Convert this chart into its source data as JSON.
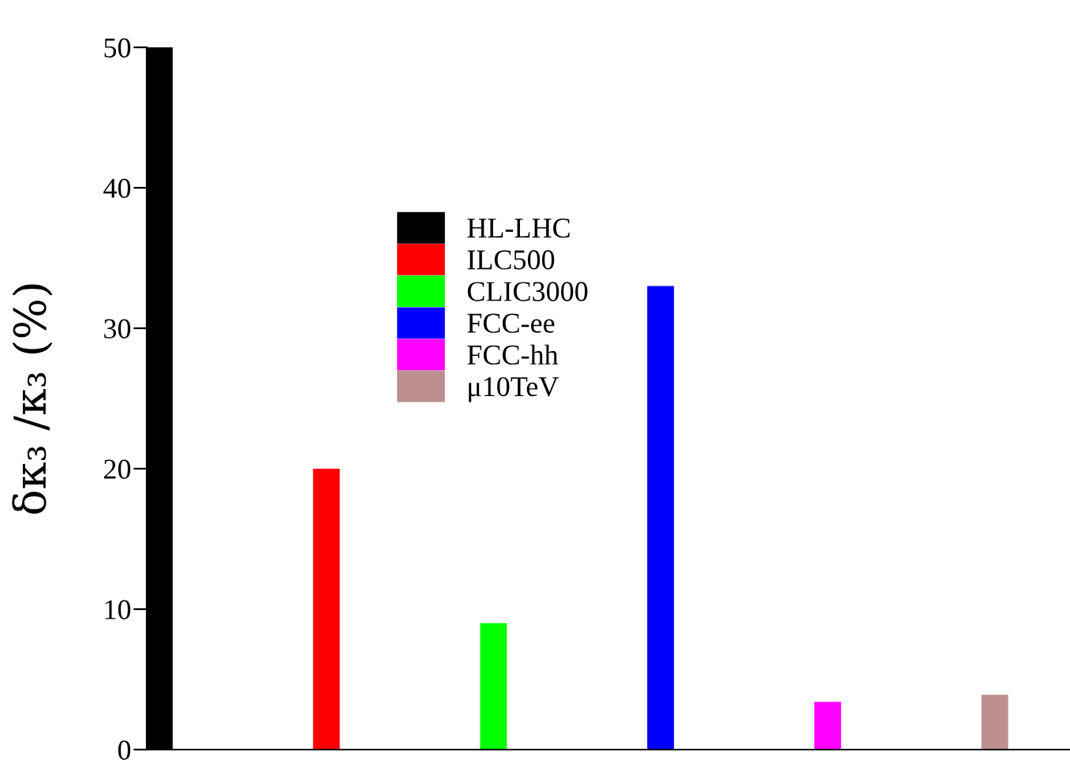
{
  "chart_data": {
    "type": "bar",
    "ylabel": "δκ₃ /κ₃ (%)",
    "categories": [
      null,
      null,
      null,
      null,
      null,
      null
    ],
    "series": [
      {
        "name": "HL-LHC",
        "color": "#000000",
        "values": [
          50,
          null,
          null,
          null,
          null,
          null
        ]
      },
      {
        "name": "ILC500",
        "color": "#ff0000",
        "values": [
          null,
          20,
          null,
          null,
          null,
          null
        ]
      },
      {
        "name": "CLIC3000",
        "color": "#00ff00",
        "values": [
          null,
          null,
          9,
          null,
          null,
          null
        ]
      },
      {
        "name": "FCC-ee",
        "color": "#0000ff",
        "values": [
          null,
          null,
          null,
          33,
          null,
          null
        ]
      },
      {
        "name": "FCC-hh",
        "color": "#ff00ff",
        "values": [
          null,
          null,
          null,
          null,
          3.4,
          null
        ]
      },
      {
        "name": "μ10TeV",
        "color": "#bc8f8f",
        "values": [
          null,
          null,
          null,
          null,
          null,
          3.9
        ]
      }
    ],
    "ylim": [
      0,
      50
    ],
    "yticks": [
      0,
      10,
      20,
      30,
      40,
      50
    ],
    "grid": false,
    "legend": "top left"
  }
}
